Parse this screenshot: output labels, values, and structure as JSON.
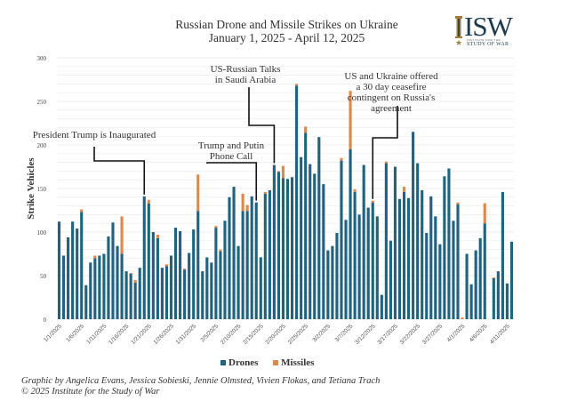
{
  "title": {
    "line1": "Russian Drone and Missile Strikes on Ukraine",
    "line2": "January 1, 2025 - April 12, 2025"
  },
  "logo": {
    "letters": "ISW",
    "sub1": "INSTITUTE FOR THE",
    "sub2": "STUDY OF WAR"
  },
  "colors": {
    "drones": "#1f6380",
    "missiles": "#e0874a",
    "grid": "#e6e6e6",
    "annotation_line": "#111111",
    "logo_gold": "#a27c3b",
    "logo_navy": "#1d3a50"
  },
  "legend": {
    "drones": "Drones",
    "missiles": "Missiles"
  },
  "credit": {
    "line1": "Graphic by Angelica Evans, Jessica Sobieski, Jennie Olmsted, Vivien Flokas, and Tetiana Trach",
    "line2": "© 2025 Institute for the Study of War"
  },
  "annotations": [
    {
      "text": [
        "President Trump is Inaugurated"
      ],
      "date_index": 19
    },
    {
      "text": [
        "Trump and Putin",
        "Phone Call"
      ],
      "date_index": 44
    },
    {
      "text": [
        "US-Russian Talks",
        "in Saudi Arabia"
      ],
      "date_index": 48
    },
    {
      "text": [
        "US and Ukraine offered",
        "a 30 day ceasefire",
        "contingent on Russia's",
        "agreement"
      ],
      "date_index": 70
    }
  ],
  "chart_data": {
    "type": "bar",
    "stacked": true,
    "title": "Russian Drone and Missile Strikes on Ukraine",
    "subtitle": "January 1, 2025 - April 12, 2025",
    "xlabel": "",
    "ylabel": "Strike Vehicles",
    "ylim": [
      0,
      300
    ],
    "yticks": [
      0,
      50,
      100,
      150,
      200,
      250,
      300
    ],
    "grid": true,
    "legend_position": "bottom",
    "xtick_labels": [
      "1/1/2025",
      "1/6/2025",
      "1/11/2025",
      "1/16/2025",
      "1/21/2025",
      "1/26/2025",
      "1/31/2025",
      "2/5/2025",
      "2/10/2025",
      "2/15/2025",
      "2/20/2025",
      "2/25/2025",
      "3/2/2025",
      "3/7/2025",
      "3/12/2025",
      "3/17/2025",
      "3/22/2025",
      "3/27/2025",
      "4/1/2025",
      "4/6/2025",
      "4/11/2025"
    ],
    "xtick_every": 5,
    "start_date": "1/1/2025",
    "num_days": 102,
    "series": [
      {
        "name": "Drones",
        "values": [
          112,
          73,
          94,
          112,
          104,
          123,
          39,
          65,
          70,
          73,
          75,
          95,
          111,
          84,
          75,
          55,
          52,
          42,
          59,
          141,
          133,
          100,
          93,
          59,
          61,
          73,
          105,
          101,
          57,
          76,
          103,
          124,
          55,
          71,
          65,
          105,
          78,
          113,
          140,
          152,
          84,
          124,
          124,
          141,
          134,
          71,
          144,
          148,
          177,
          169,
          162,
          161,
          163,
          268,
          186,
          214,
          178,
          167,
          209,
          155,
          79,
          84,
          99,
          182,
          114,
          195,
          146,
          120,
          177,
          128,
          134,
          118,
          28,
          179,
          90,
          175,
          138,
          146,
          139,
          215,
          179,
          148,
          99,
          141,
          118,
          86,
          164,
          173,
          113,
          132,
          0,
          75,
          40,
          79,
          93,
          110,
          0,
          47,
          55,
          146,
          41,
          89
        ]
      },
      {
        "name": "Missiles",
        "values": [
          0,
          0,
          0,
          0,
          0,
          3,
          0,
          0,
          3,
          0,
          0,
          0,
          0,
          0,
          43,
          0,
          1,
          3,
          0,
          0,
          4,
          0,
          4,
          0,
          2,
          0,
          0,
          0,
          1,
          0,
          0,
          42,
          0,
          0,
          0,
          2,
          2,
          0,
          0,
          0,
          0,
          20,
          7,
          0,
          0,
          0,
          2,
          0,
          0,
          1,
          14,
          0,
          0,
          2,
          0,
          7,
          0,
          0,
          0,
          0,
          0,
          0,
          0,
          3,
          0,
          67,
          3,
          0,
          0,
          0,
          2,
          0,
          0,
          2,
          0,
          0,
          0,
          6,
          0,
          0,
          0,
          0,
          0,
          0,
          0,
          0,
          0,
          0,
          0,
          2,
          2,
          0,
          0,
          0,
          0,
          23,
          0,
          1,
          0,
          0,
          0,
          0
        ]
      }
    ]
  }
}
